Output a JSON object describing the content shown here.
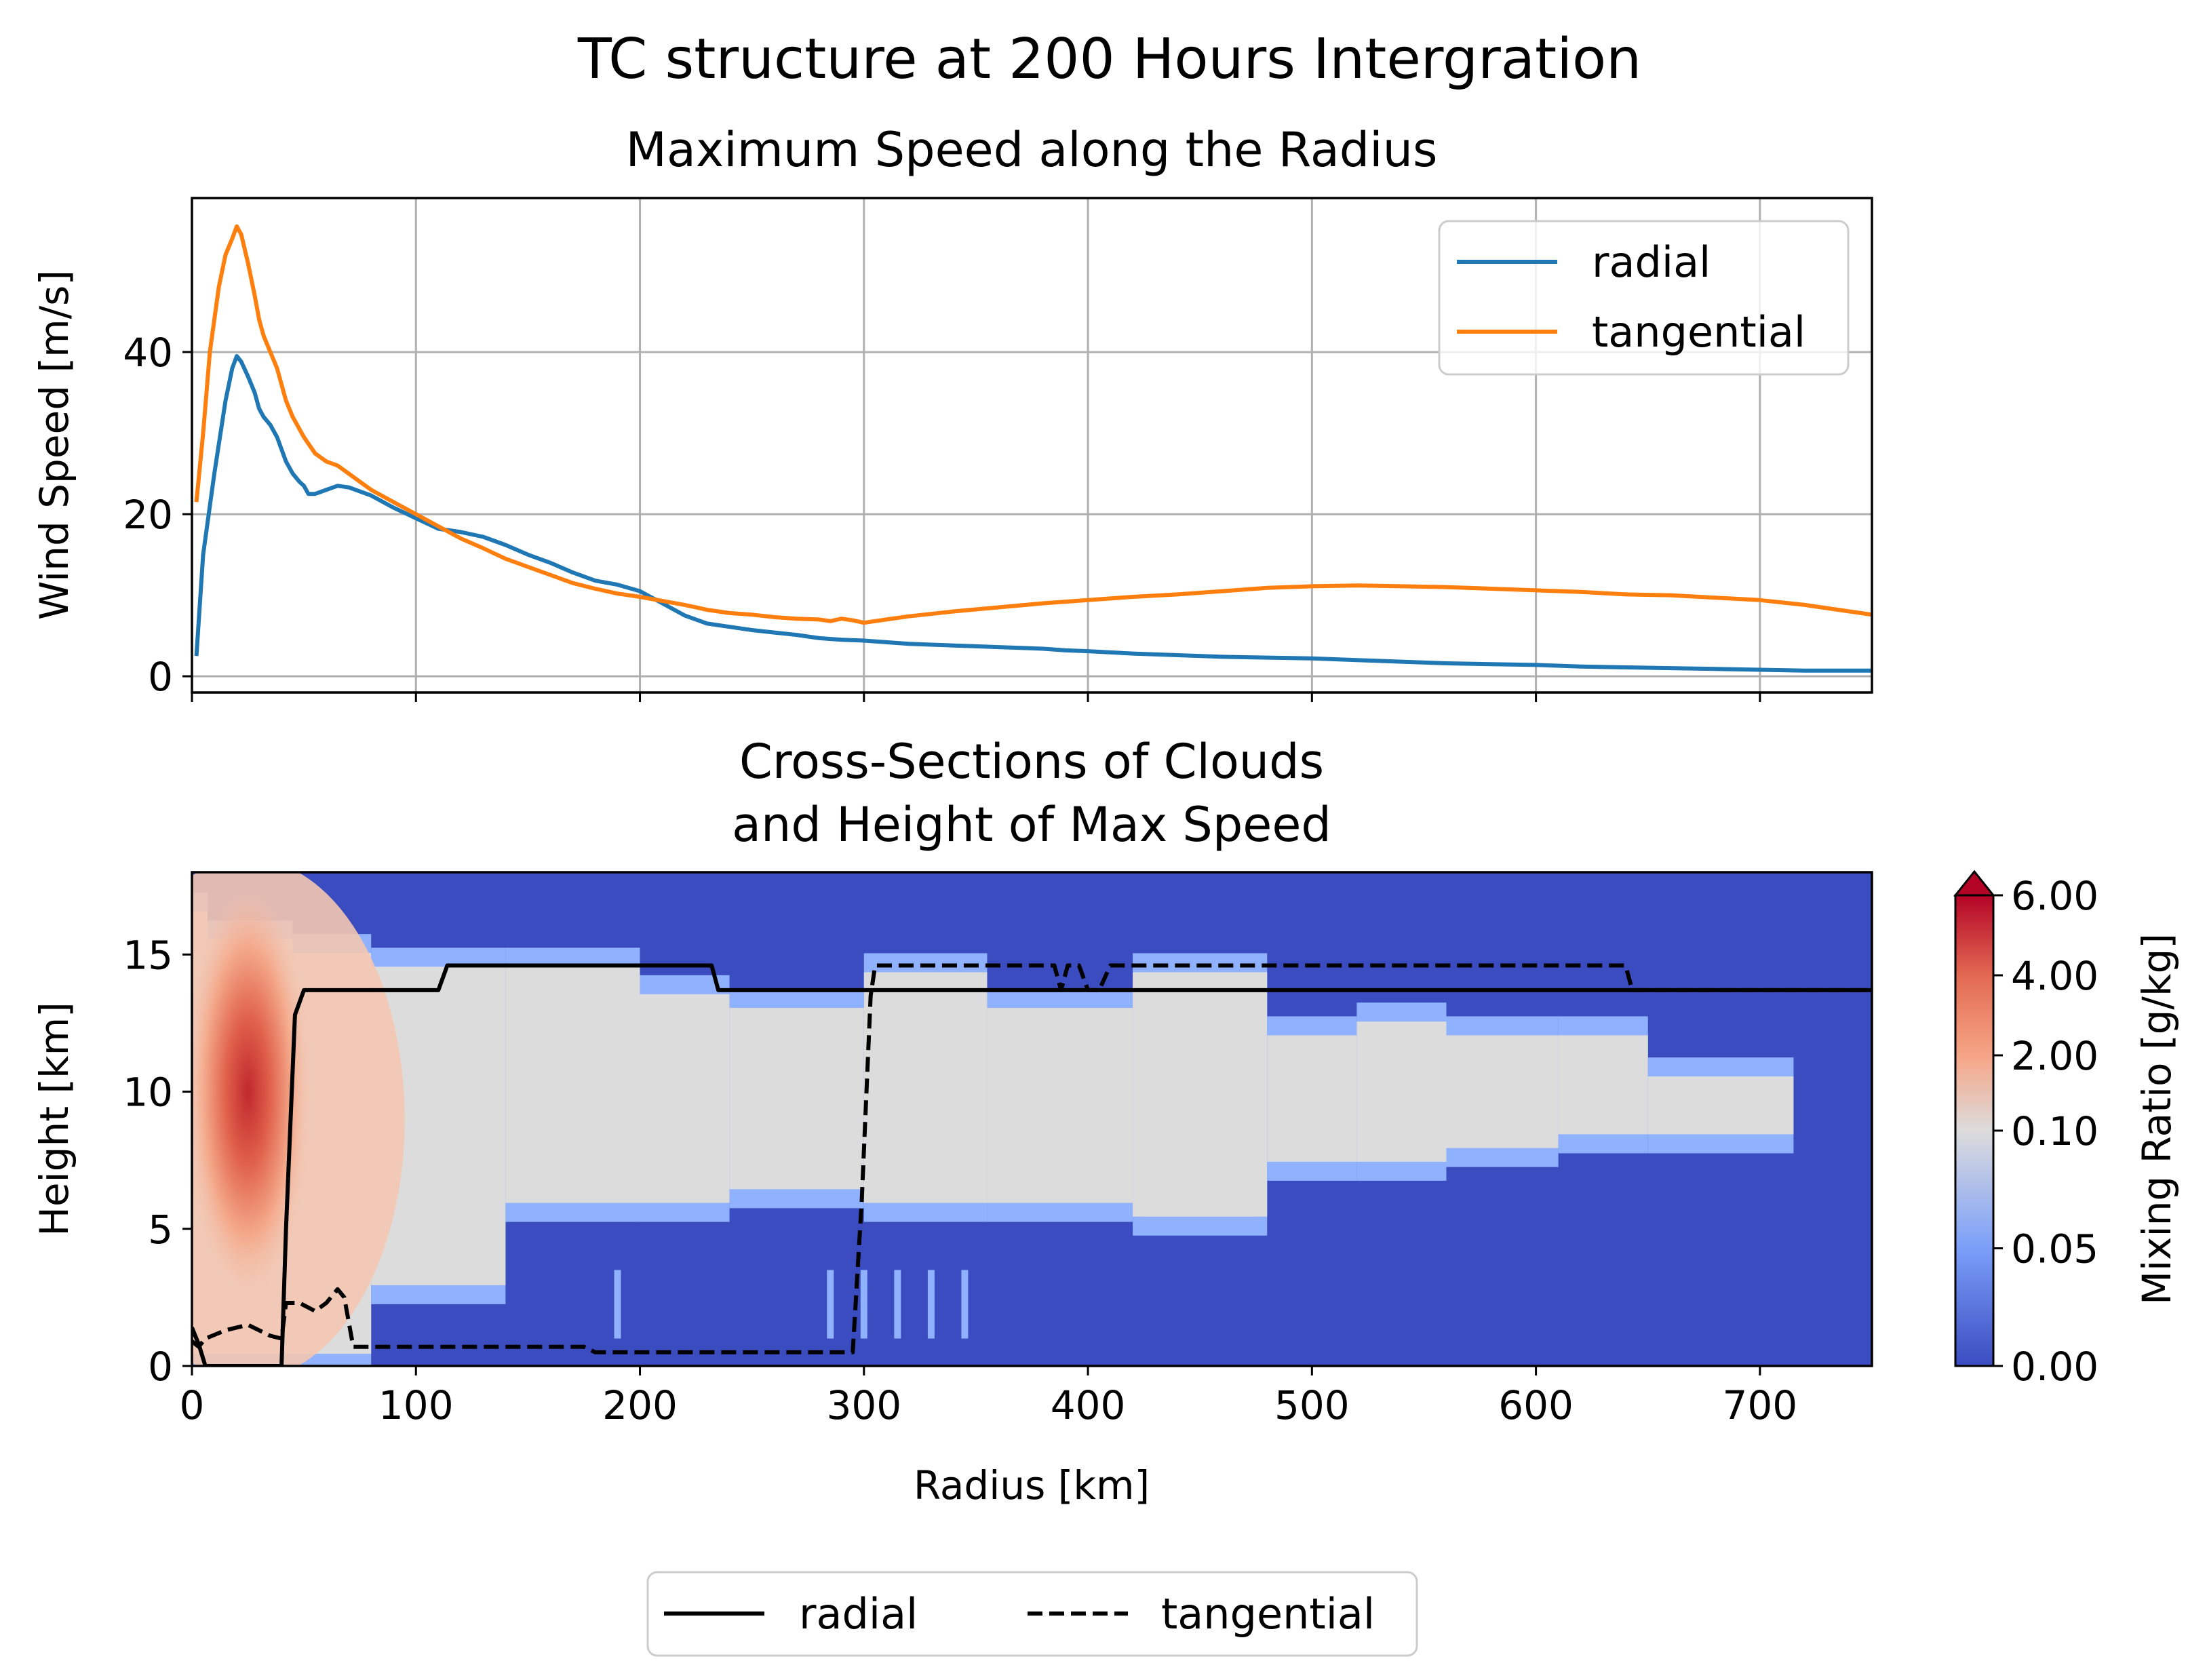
{
  "figure": {
    "suptitle": "TC structure at 200 Hours Intergration"
  },
  "chart_data": [
    {
      "type": "line",
      "title": "Maximum Speed along the Radius",
      "xlabel": "",
      "ylabel": "Wind Speed [m/s]",
      "xlim": [
        0,
        750
      ],
      "ylim": [
        -2,
        59
      ],
      "xticks": [
        0,
        100,
        200,
        300,
        400,
        500,
        600,
        700
      ],
      "yticks": [
        0,
        20,
        40
      ],
      "ytick_labels": [
        "0",
        "20",
        "40"
      ],
      "grid": true,
      "legend": "top-right",
      "series": [
        {
          "name": "radial",
          "color": "#1f77b4",
          "x": [
            2,
            5,
            10,
            15,
            18,
            20,
            22,
            25,
            28,
            30,
            32,
            35,
            38,
            40,
            42,
            45,
            48,
            50,
            52,
            55,
            60,
            65,
            70,
            75,
            80,
            90,
            100,
            110,
            120,
            130,
            140,
            150,
            160,
            170,
            180,
            190,
            200,
            210,
            220,
            230,
            240,
            250,
            260,
            270,
            280,
            290,
            300,
            310,
            320,
            330,
            340,
            350,
            360,
            370,
            380,
            390,
            400,
            420,
            440,
            460,
            480,
            500,
            520,
            540,
            560,
            580,
            600,
            620,
            640,
            660,
            680,
            700,
            720,
            740,
            750
          ],
          "y": [
            2.5,
            15,
            25,
            34,
            38,
            39.5,
            38.8,
            37,
            35,
            33,
            32,
            31,
            29.5,
            28,
            26.5,
            25,
            24,
            23.5,
            22.5,
            22.5,
            23,
            23.5,
            23.3,
            22.8,
            22.3,
            20.8,
            19.5,
            18.2,
            17.8,
            17.2,
            16.2,
            15,
            14,
            12.8,
            11.8,
            11.3,
            10.5,
            9,
            7.5,
            6.5,
            6.1,
            5.7,
            5.4,
            5.1,
            4.7,
            4.5,
            4.4,
            4.2,
            4,
            3.9,
            3.8,
            3.7,
            3.6,
            3.5,
            3.4,
            3.2,
            3.1,
            2.8,
            2.6,
            2.4,
            2.3,
            2.2,
            2,
            1.8,
            1.6,
            1.5,
            1.4,
            1.2,
            1.1,
            1,
            0.9,
            0.8,
            0.7,
            0.7,
            0.7
          ]
        },
        {
          "name": "tangential",
          "color": "#ff7f0e",
          "x": [
            2,
            5,
            8,
            10,
            12,
            15,
            18,
            20,
            22,
            25,
            28,
            30,
            32,
            35,
            38,
            40,
            42,
            45,
            48,
            50,
            55,
            60,
            65,
            70,
            75,
            80,
            90,
            100,
            110,
            120,
            130,
            140,
            150,
            160,
            170,
            180,
            190,
            200,
            210,
            220,
            230,
            240,
            250,
            260,
            270,
            280,
            285,
            290,
            295,
            300,
            310,
            320,
            340,
            360,
            380,
            400,
            420,
            440,
            460,
            480,
            500,
            520,
            540,
            560,
            580,
            600,
            620,
            640,
            660,
            680,
            700,
            720,
            740,
            750
          ],
          "y": [
            21.5,
            30,
            40,
            44,
            48,
            52,
            54,
            55.5,
            54.5,
            51,
            47,
            44,
            42,
            40,
            38,
            36,
            34,
            32,
            30.5,
            29.5,
            27.5,
            26.5,
            26,
            25,
            24,
            23,
            21.5,
            20,
            18.5,
            17,
            15.8,
            14.5,
            13.5,
            12.5,
            11.5,
            10.8,
            10.2,
            9.8,
            9.3,
            8.8,
            8.2,
            7.8,
            7.6,
            7.3,
            7.1,
            7,
            6.8,
            7.1,
            6.9,
            6.6,
            7,
            7.4,
            8,
            8.5,
            9,
            9.4,
            9.8,
            10.1,
            10.5,
            10.9,
            11.1,
            11.2,
            11.1,
            11,
            10.8,
            10.6,
            10.4,
            10.1,
            10,
            9.7,
            9.4,
            8.8,
            8,
            7.6
          ]
        }
      ]
    },
    {
      "type": "heatmap",
      "title": "Cross-Sections of Clouds\nand Height of Max Speed",
      "title_lines": [
        "Cross-Sections of Clouds",
        "and Height of Max Speed"
      ],
      "xlabel": "Radius [km]",
      "ylabel": "Height [km]",
      "xlim": [
        0,
        750
      ],
      "ylim": [
        0,
        18
      ],
      "xticks": [
        0,
        100,
        200,
        300,
        400,
        500,
        600,
        700
      ],
      "xtick_labels": [
        "0",
        "100",
        "200",
        "300",
        "400",
        "500",
        "600",
        "700"
      ],
      "yticks": [
        0,
        5,
        10,
        15
      ],
      "ytick_labels": [
        "0",
        "5",
        "10",
        "15"
      ],
      "legend": "bottom-center, outside",
      "colorbar": {
        "label": "Mixing Ratio [g/kg]",
        "ticks": [
          "0.00",
          "0.05",
          "0.10",
          "2.00",
          "4.00",
          "6.00"
        ],
        "extend": "max",
        "colormap": "coolwarm"
      },
      "cloud_field": {
        "description_free": true,
        "segments": [
          {
            "x": [
              0,
              7
            ],
            "bottom": 0,
            "top": 17
          },
          {
            "x": [
              7,
              22
            ],
            "bottom": 0,
            "top": 16
          },
          {
            "x": [
              22,
              45
            ],
            "bottom": 0,
            "top": 16
          },
          {
            "x": [
              45,
              80
            ],
            "bottom": 0,
            "top": 15.5
          },
          {
            "x": [
              80,
              140
            ],
            "bottom": 2.5,
            "top": 15
          },
          {
            "x": [
              140,
              200
            ],
            "bottom": 5.5,
            "top": 15
          },
          {
            "x": [
              200,
              240
            ],
            "bottom": 5.5,
            "top": 14
          },
          {
            "x": [
              240,
              300
            ],
            "bottom": 6,
            "top": 13.5
          },
          {
            "x": [
              300,
              355
            ],
            "bottom": 5.5,
            "top": 14.8
          },
          {
            "x": [
              355,
              420
            ],
            "bottom": 5.5,
            "top": 13.5
          },
          {
            "x": [
              420,
              480
            ],
            "bottom": 5,
            "top": 14.8
          },
          {
            "x": [
              480,
              520
            ],
            "bottom": 7,
            "top": 12.5
          },
          {
            "x": [
              520,
              560
            ],
            "bottom": 7,
            "top": 13
          },
          {
            "x": [
              560,
              610
            ],
            "bottom": 7.5,
            "top": 12.5
          },
          {
            "x": [
              610,
              650
            ],
            "bottom": 8,
            "top": 12.5
          },
          {
            "x": [
              650,
              715
            ],
            "bottom": 8,
            "top": 11
          }
        ],
        "core": {
          "x": 25,
          "y": 10,
          "max": 6.0
        }
      },
      "series": [
        {
          "name": "radial",
          "color": "#000000",
          "style": "solid",
          "x": [
            0,
            3,
            6,
            40,
            42,
            46,
            50,
            110,
            114,
            232,
            235,
            750
          ],
          "y": [
            1.4,
            0.8,
            0,
            0,
            5,
            12.8,
            13.7,
            13.7,
            14.6,
            14.6,
            13.7,
            13.7
          ]
        },
        {
          "name": "tangential",
          "color": "#000000",
          "style": "dashed",
          "x": [
            0,
            3,
            6,
            15,
            25,
            30,
            35,
            40,
            42,
            48,
            55,
            60,
            65,
            68,
            72,
            100,
            175,
            180,
            295,
            299,
            303,
            305,
            385,
            388,
            391,
            396,
            400,
            405,
            410,
            415,
            640,
            643,
            750
          ],
          "y": [
            0.9,
            0.7,
            1.0,
            1.3,
            1.5,
            1.3,
            1.1,
            1.0,
            2.3,
            2.3,
            2.0,
            2.3,
            2.8,
            2.5,
            0.7,
            0.7,
            0.7,
            0.5,
            0.5,
            6,
            13.5,
            14.6,
            14.6,
            13.7,
            14.6,
            14.6,
            13.7,
            13.7,
            14.6,
            14.6,
            14.6,
            13.7,
            13.7
          ]
        }
      ]
    }
  ]
}
